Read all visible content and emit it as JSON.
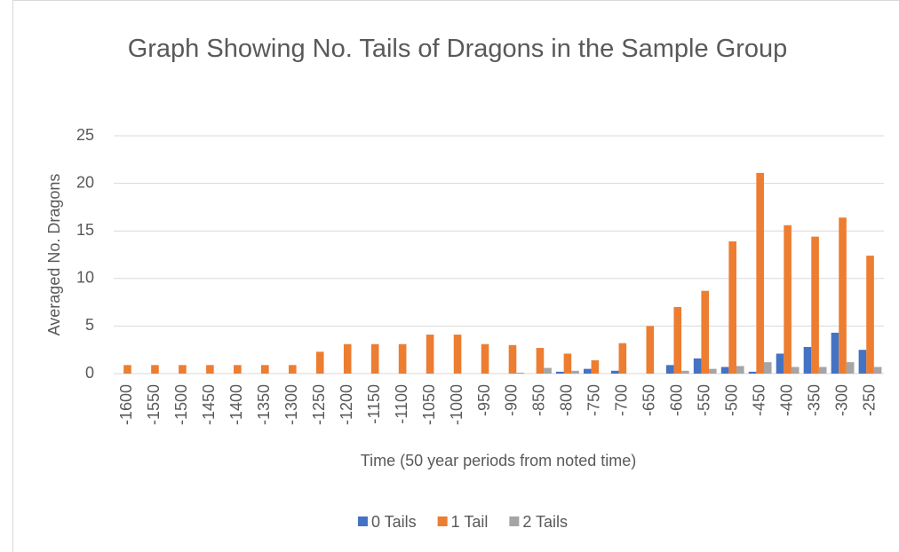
{
  "chart_data": {
    "type": "bar",
    "title": "Graph Showing No. Tails of Dragons in the Sample Group",
    "x_label": "Time (50 year periods from noted time)",
    "y_label": "Averaged No. Dragons",
    "categories": [
      "-1600",
      "-1550",
      "-1500",
      "-1450",
      "-1400",
      "-1350",
      "-1300",
      "-1250",
      "-1200",
      "-1150",
      "-1100",
      "-1050",
      "-1000",
      "-950",
      "-900",
      "-850",
      "-800",
      "-750",
      "-700",
      "-650",
      "-600",
      "-550",
      "-500",
      "-450",
      "-400",
      "-350",
      "-300",
      "-250"
    ],
    "series": [
      {
        "name": "0 Tails",
        "color": "#4472c4",
        "values": [
          0,
          0,
          0,
          0,
          0,
          0,
          0,
          0,
          0,
          0,
          0,
          0,
          0,
          0,
          0,
          0,
          0.2,
          0.5,
          0.3,
          0,
          0.9,
          1.6,
          0.7,
          0.2,
          2.1,
          2.8,
          4.3,
          2.5
        ]
      },
      {
        "name": "1 Tail",
        "color": "#ed7d31",
        "values": [
          0.9,
          0.9,
          0.9,
          0.9,
          0.9,
          0.9,
          0.9,
          2.3,
          3.1,
          3.1,
          3.1,
          4.1,
          4.1,
          3.1,
          3.0,
          2.7,
          2.1,
          1.4,
          3.2,
          5.0,
          7.0,
          8.7,
          13.9,
          21.1,
          15.6,
          14.4,
          16.4,
          12.4
        ]
      },
      {
        "name": "2 Tails",
        "color": "#a5a5a5",
        "values": [
          0,
          0,
          0,
          0,
          0,
          0,
          0,
          0,
          0,
          0,
          0,
          0,
          0,
          0,
          0.1,
          0.6,
          0.3,
          0,
          0,
          0,
          0.3,
          0.5,
          0.8,
          1.2,
          0.7,
          0.7,
          1.2,
          0.7
        ]
      }
    ],
    "ylim": [
      0,
      25
    ],
    "yticks": [
      0,
      5,
      10,
      15,
      20,
      25
    ],
    "grid": true,
    "legend": "bottom"
  }
}
